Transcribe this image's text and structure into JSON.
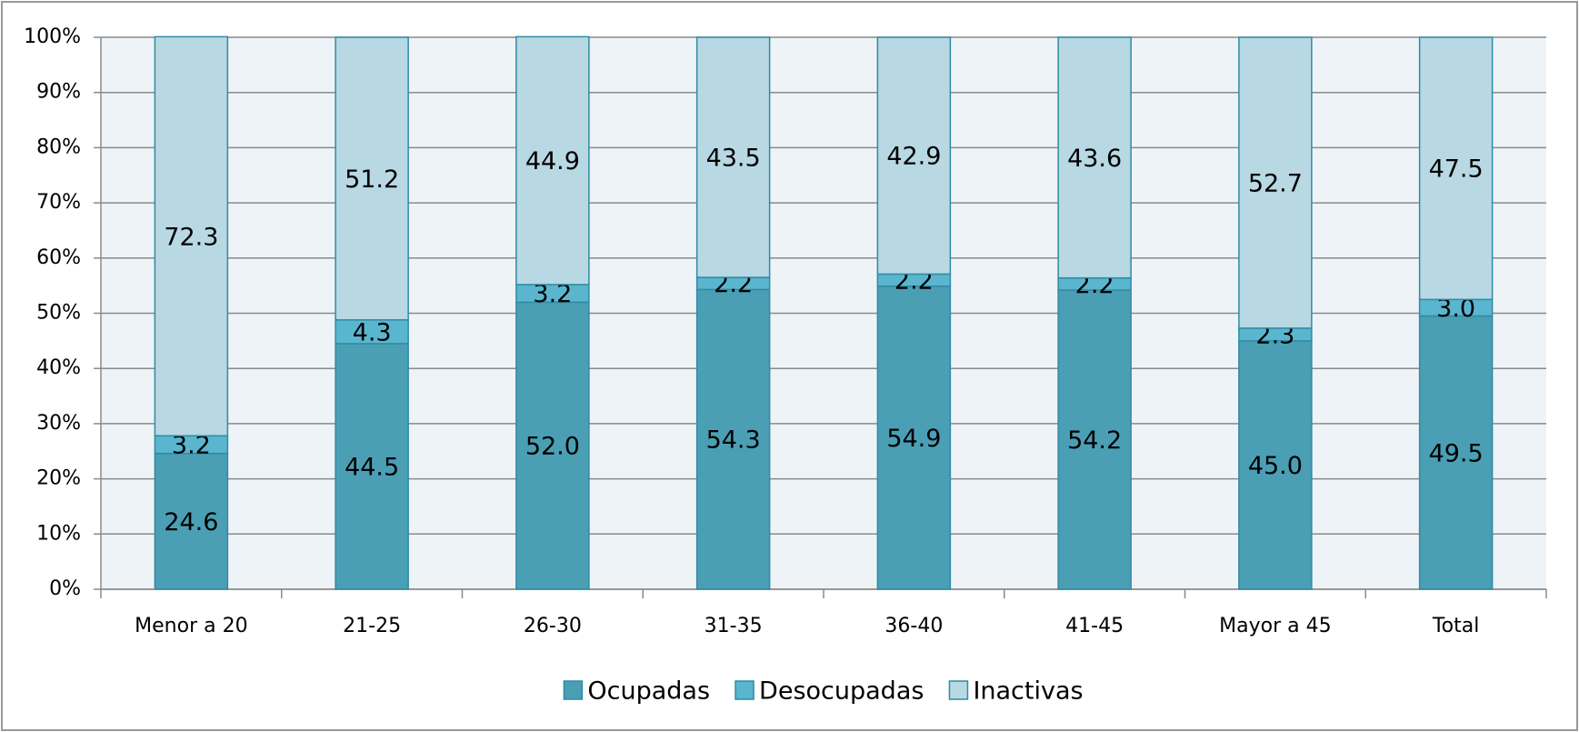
{
  "chart_data": {
    "type": "stacked_bar",
    "categories": [
      "Menor a 20",
      "21-25",
      "26-30",
      "31-35",
      "36-40",
      "41-45",
      "Mayor a 45",
      "Total"
    ],
    "series": [
      {
        "name": "Ocupadas",
        "color": "#4a9fb5",
        "values": [
          24.6,
          44.5,
          52.0,
          54.3,
          54.9,
          54.2,
          45.0,
          49.5
        ],
        "value_labels": [
          "24.6",
          "44.5",
          "52.0",
          "54.3",
          "54.9",
          "54.2",
          "45.0",
          "49.5"
        ]
      },
      {
        "name": "Desocupadas",
        "color": "#5ab6cf",
        "values": [
          3.2,
          4.3,
          3.2,
          2.2,
          2.2,
          2.2,
          2.3,
          3.0
        ],
        "value_labels": [
          "3.2",
          "4.3",
          "3.2",
          "2.2",
          "2.2",
          "2.2",
          "2.3",
          "3.0"
        ]
      },
      {
        "name": "Inactivas",
        "color": "#b8d8e4",
        "values": [
          72.3,
          51.2,
          44.9,
          43.5,
          42.9,
          43.6,
          52.7,
          47.5
        ],
        "value_labels": [
          "72.3",
          "51.2",
          "44.9",
          "43.5",
          "42.9",
          "43.6",
          "52.7",
          "47.5"
        ]
      }
    ],
    "ylim": [
      0,
      100
    ],
    "yticks": [
      {
        "value": 0,
        "label": "0%"
      },
      {
        "value": 10,
        "label": "10%"
      },
      {
        "value": 20,
        "label": "20%"
      },
      {
        "value": 30,
        "label": "30%"
      },
      {
        "value": 40,
        "label": "40%"
      },
      {
        "value": 50,
        "label": "50%"
      },
      {
        "value": 60,
        "label": "60%"
      },
      {
        "value": 70,
        "label": "70%"
      },
      {
        "value": 80,
        "label": "80%"
      },
      {
        "value": 90,
        "label": "90%"
      },
      {
        "value": 100,
        "label": "100%"
      }
    ],
    "grid": true,
    "legend": "bottom"
  }
}
